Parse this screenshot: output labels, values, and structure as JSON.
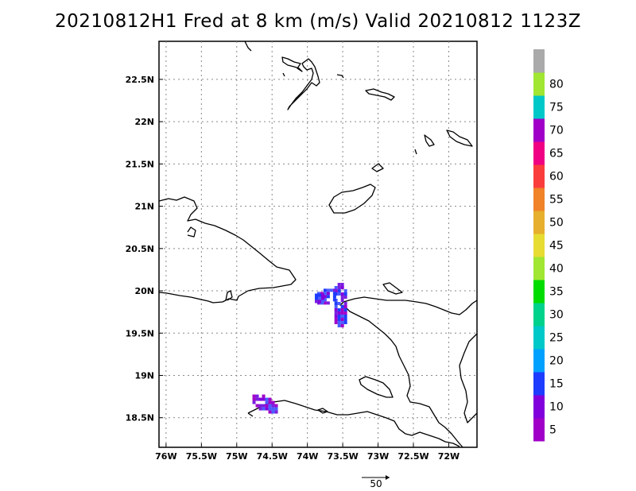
{
  "title": "20210812H1 Fred at 8 km (m/s) Valid 20210812 1123Z",
  "map": {
    "lon_range": [
      -76.1,
      -71.6
    ],
    "lat_range": [
      18.15,
      22.95
    ],
    "lon_ticks": [
      -76,
      -75.5,
      -75,
      -74.5,
      -74,
      -73.5,
      -73,
      -72.5,
      -72
    ],
    "lat_ticks": [
      18.5,
      19,
      19.5,
      20,
      20.5,
      21,
      21.5,
      22,
      22.5
    ],
    "lon_labels": [
      "76W",
      "75.5W",
      "75W",
      "74.5W",
      "74W",
      "73.5W",
      "73W",
      "72.5W",
      "72W"
    ],
    "lat_labels": [
      "18.5N",
      "19N",
      "19.5N",
      "20N",
      "20.5N",
      "21N",
      "21.5N",
      "22N",
      "22.5N"
    ],
    "grid": true,
    "grid_style": "dotted"
  },
  "colorbar": {
    "labels": [
      "5",
      "10",
      "15",
      "20",
      "25",
      "30",
      "35",
      "40",
      "45",
      "50",
      "55",
      "60",
      "65",
      "70",
      "75",
      "80"
    ],
    "colors": [
      "#a000c8",
      "#8200dc",
      "#1e3cff",
      "#00a0ff",
      "#00c8c8",
      "#00d28c",
      "#00dc00",
      "#a0e632",
      "#e6dc32",
      "#e6af2d",
      "#f08228",
      "#fa3c3c",
      "#f00082",
      "#a000c8",
      "#00c8c8",
      "#a0e632",
      "#aaaaaa"
    ]
  },
  "wind_vector": {
    "reference_label": "50"
  },
  "wind_observations": [
    {
      "region": "north-central Haiti coast",
      "lon_range": [
        -74.0,
        -73.5
      ],
      "lat_range": [
        19.55,
        20.2
      ],
      "values_mps": "5-15"
    },
    {
      "region": "southwest Haiti peninsula",
      "lon_range": [
        -74.85,
        -74.5
      ],
      "lat_range": [
        18.55,
        18.85
      ],
      "values_mps": "5-10"
    }
  ]
}
